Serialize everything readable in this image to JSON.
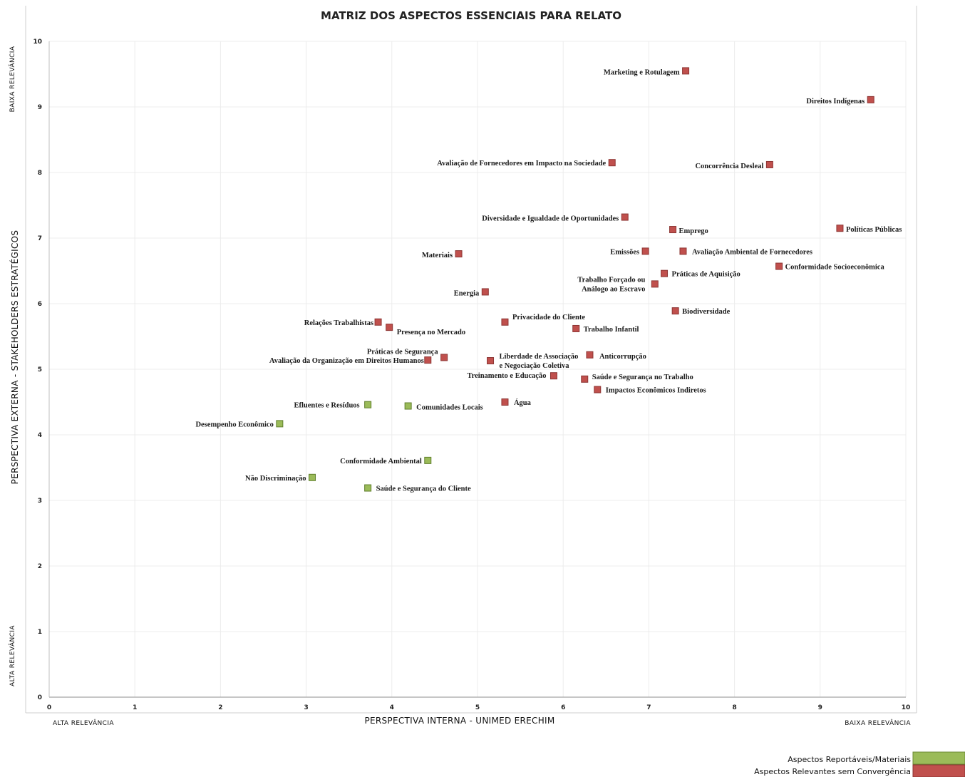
{
  "chart_data": {
    "type": "scatter",
    "title": "MATRIZ DOS ASPECTOS ESSENCIAIS PARA RELATO",
    "xlabel": "PERSPECTIVA INTERNA - UNIMED ERECHIM",
    "ylabel": "PERSPECTIVA EXTERNA - STAKEHOLDERS ESTRATÉGICOS",
    "xlim": [
      0,
      10
    ],
    "ylim": [
      0,
      10
    ],
    "x_ticks": [
      "0",
      "1",
      "2",
      "3",
      "4",
      "5",
      "6",
      "7",
      "8",
      "9",
      "10"
    ],
    "y_ticks": [
      "0",
      "1",
      "2",
      "3",
      "4",
      "5",
      "6",
      "7",
      "8",
      "9",
      "10"
    ],
    "grid": true,
    "corner_labels": {
      "x_low": "ALTA RELEVÂNCIA",
      "x_high": "BAIXA RELEVÂNCIA",
      "y_low": "ALTA RELEVÂNCIA",
      "y_high": "BAIXA RELEVÂNCIA"
    },
    "legend_position": "bottom-right",
    "series": [
      {
        "name": "Aspectos Reportáveis/Materiais",
        "color": "#9bbb59",
        "points": [
          {
            "label": "Efluentes e Resíduos",
            "x": 3.72,
            "y": 4.46
          },
          {
            "label": "Comunidades Locais",
            "x": 4.19,
            "y": 4.44
          },
          {
            "label": "Desempenho Econômico",
            "x": 2.69,
            "y": 4.17
          },
          {
            "label": "Conformidade Ambiental",
            "x": 4.42,
            "y": 3.61
          },
          {
            "label": "Não Discriminação",
            "x": 3.07,
            "y": 3.35
          },
          {
            "label": "Saúde e Segurança do Cliente",
            "x": 3.72,
            "y": 3.19
          }
        ]
      },
      {
        "name": "Aspectos Relevantes sem Convergência",
        "color": "#c0504d",
        "points": [
          {
            "label": "Marketing e Rotulagem",
            "x": 7.43,
            "y": 9.55
          },
          {
            "label": "Direitos Indígenas",
            "x": 9.59,
            "y": 9.11
          },
          {
            "label": "Avaliação de Fornecedores em Impacto na Sociedade",
            "x": 6.57,
            "y": 8.15
          },
          {
            "label": "Concorrência Desleal",
            "x": 8.41,
            "y": 8.12
          },
          {
            "label": "Diversidade e Igualdade de Oportunidades",
            "x": 6.72,
            "y": 7.32
          },
          {
            "label": "Emprego",
            "x": 7.28,
            "y": 7.13
          },
          {
            "label": "Políticas Públicas",
            "x": 9.23,
            "y": 7.15
          },
          {
            "label": "Materiais",
            "x": 4.78,
            "y": 6.76
          },
          {
            "label": "Emissões",
            "x": 6.96,
            "y": 6.8
          },
          {
            "label": "Avaliação Ambiental de Fornecedores",
            "x": 7.4,
            "y": 6.8
          },
          {
            "label": "Conformidade Socioeconômica",
            "x": 8.52,
            "y": 6.57
          },
          {
            "label": "Práticas de Aquisição",
            "x": 7.18,
            "y": 6.46
          },
          {
            "label": "Trabalho Forçado ou Análogo ao Escravo",
            "x": 7.07,
            "y": 6.3
          },
          {
            "label": "Energia",
            "x": 5.09,
            "y": 6.18
          },
          {
            "label": "Biodiversidade",
            "x": 7.31,
            "y": 5.89
          },
          {
            "label": "Relações Trabalhistas",
            "x": 3.84,
            "y": 5.72
          },
          {
            "label": "Privacidade do Cliente",
            "x": 5.32,
            "y": 5.72
          },
          {
            "label": "Presença no Mercado",
            "x": 3.97,
            "y": 5.64
          },
          {
            "label": "Trabalho Infantil",
            "x": 6.15,
            "y": 5.62
          },
          {
            "label": "Práticas de Segurança",
            "x": 4.61,
            "y": 5.18
          },
          {
            "label": "Avaliação da Organização em Direitos Humanos",
            "x": 4.42,
            "y": 5.14
          },
          {
            "label": "Liberdade de Associação e Negociação Coletiva",
            "x": 5.15,
            "y": 5.13
          },
          {
            "label": "Anticorrupção",
            "x": 6.31,
            "y": 5.22
          },
          {
            "label": "Treinamento e Educação",
            "x": 5.89,
            "y": 4.9
          },
          {
            "label": "Saúde e Segurança no Trabalho",
            "x": 6.25,
            "y": 4.85
          },
          {
            "label": "Impactos Econômicos Indiretos",
            "x": 6.4,
            "y": 4.69
          },
          {
            "label": "Água",
            "x": 5.32,
            "y": 4.5
          }
        ]
      }
    ]
  }
}
